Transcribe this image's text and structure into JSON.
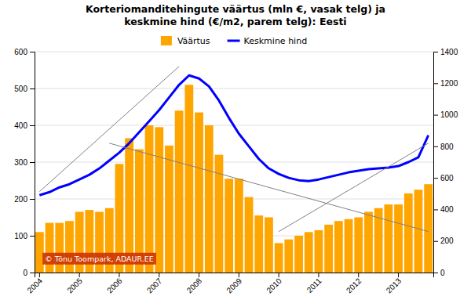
{
  "chart_data": {
    "type": "bar",
    "title": "Korteriomanditehingute väärtus (mln €, vasak telg) ja\nkeskmine hind (€/m2, parem telg): Eesti",
    "categories": [
      "2004",
      null,
      null,
      null,
      "2005",
      null,
      null,
      null,
      "2006",
      null,
      null,
      null,
      "2007",
      null,
      null,
      null,
      "2008",
      null,
      null,
      null,
      "2009",
      null,
      null,
      null,
      "2010",
      null,
      null,
      null,
      "2011",
      null,
      null,
      null,
      "2012",
      null,
      null,
      null,
      "2013",
      null,
      null,
      null
    ],
    "series": [
      {
        "name": "Väärtus",
        "type": "bar",
        "color": "#FFA500",
        "values": [
          110,
          135,
          135,
          140,
          165,
          170,
          165,
          175,
          295,
          365,
          335,
          400,
          395,
          345,
          440,
          510,
          435,
          400,
          320,
          255,
          255,
          205,
          155,
          150,
          80,
          90,
          100,
          110,
          115,
          130,
          140,
          145,
          150,
          165,
          175,
          185,
          185,
          215,
          225,
          240
        ]
      },
      {
        "name": "Keskmine hind",
        "type": "line",
        "axis": "y2",
        "color": "#0000FF",
        "values": [
          490,
          510,
          540,
          560,
          590,
          620,
          660,
          710,
          760,
          820,
          890,
          960,
          1030,
          1110,
          1190,
          1250,
          1230,
          1180,
          1090,
          980,
          880,
          800,
          720,
          660,
          625,
          600,
          585,
          580,
          590,
          605,
          620,
          635,
          645,
          655,
          660,
          665,
          675,
          700,
          730,
          870
        ]
      },
      {
        "type": "line",
        "color": "#808080",
        "x": [
          0,
          14
        ],
        "values": [
          220,
          560
        ]
      },
      {
        "type": "line",
        "axis": "y2",
        "color": "#808080",
        "x": [
          7,
          39
        ],
        "values": [
          820,
          260
        ]
      },
      {
        "type": "line",
        "axis": "y2",
        "color": "#808080",
        "x": [
          24,
          39
        ],
        "values": [
          260,
          820
        ]
      }
    ],
    "ylim": [
      0,
      600
    ],
    "yticks": [
      0,
      100,
      200,
      300,
      400,
      500,
      600
    ],
    "y2lim": [
      0,
      1400
    ],
    "y2ticks": [
      0,
      200,
      400,
      600,
      800,
      1000,
      1200,
      1400
    ],
    "grid": true,
    "legend": "top",
    "annotations": [
      {
        "text": "© Tõnu Toompark, ADAUR.EE",
        "color": "#CC3300"
      }
    ]
  }
}
